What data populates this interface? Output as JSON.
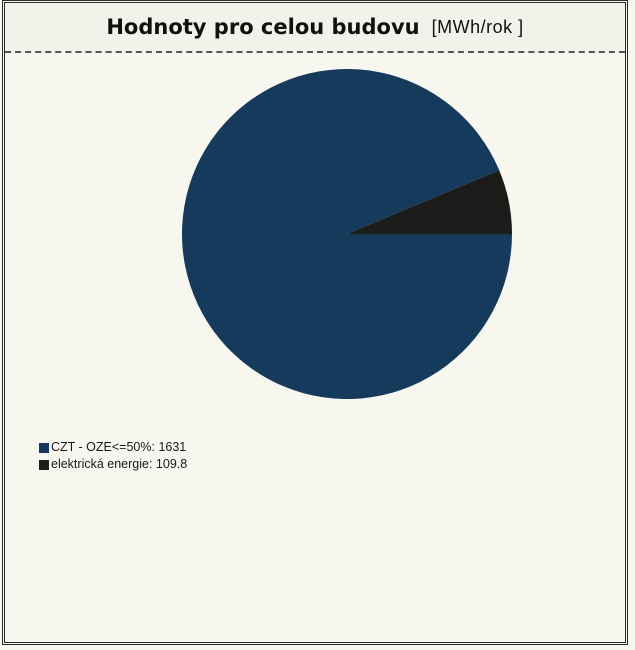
{
  "header": {
    "title": "Hodnoty pro celou budovu",
    "unit": "[MWh/rok ]"
  },
  "chart_data": {
    "type": "pie",
    "title": "Hodnoty pro celou budovu",
    "unit": "[MWh/rok ]",
    "legend_position": "bottom-left",
    "slices": [
      {
        "label": "CZT - OZE<=50%",
        "value": 1631,
        "color": "#163a5c"
      },
      {
        "label": "elektrická energie",
        "value": 109.8,
        "color": "#1c1c1a"
      }
    ],
    "legend": [
      {
        "text": "CZT - OZE<=50%: 1631",
        "color": "#163a5c"
      },
      {
        "text": "elektrická energie: 109.8",
        "color": "#1c1c1a"
      }
    ]
  }
}
